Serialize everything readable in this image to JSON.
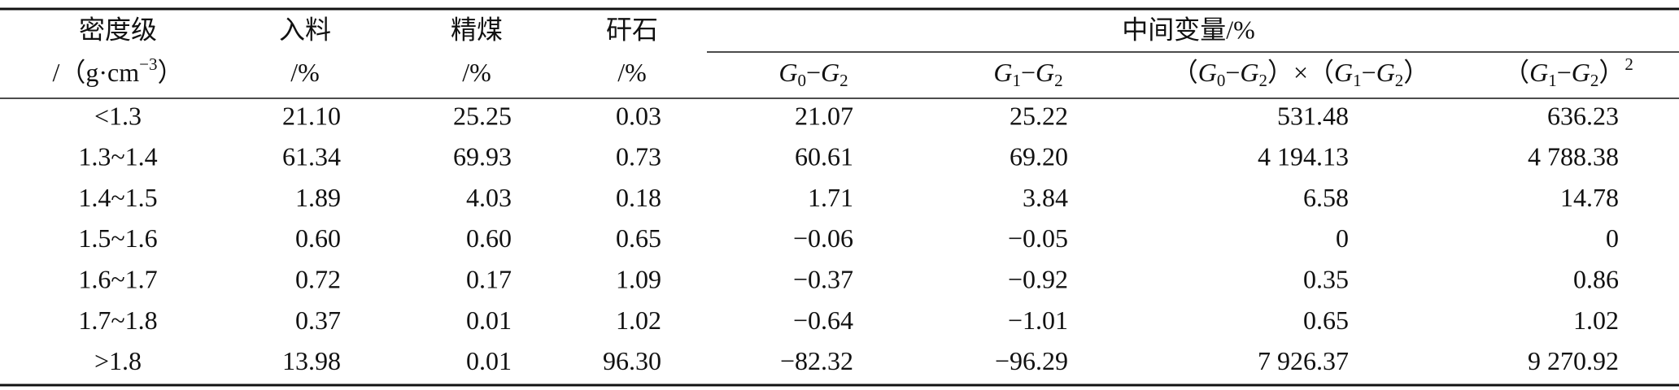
{
  "table": {
    "header_row1": [
      "密度级",
      "入料",
      "精煤",
      "矸石",
      "中间变量/%"
    ],
    "header_row2": [
      [
        {
          "text": "/（g·cm"
        },
        {
          "text": "−3",
          "style": "sup"
        },
        {
          "text": "）"
        }
      ],
      [
        {
          "text": "/%"
        }
      ],
      [
        {
          "text": "/%"
        }
      ],
      [
        {
          "text": "/%"
        }
      ],
      [
        {
          "text": "G",
          "style": "i"
        },
        {
          "text": "0",
          "style": "sub"
        },
        {
          "text": "−"
        },
        {
          "text": "G",
          "style": "i"
        },
        {
          "text": "2",
          "style": "sub"
        }
      ],
      [
        {
          "text": "G",
          "style": "i"
        },
        {
          "text": "1",
          "style": "sub"
        },
        {
          "text": "−"
        },
        {
          "text": "G",
          "style": "i"
        },
        {
          "text": "2",
          "style": "sub"
        }
      ],
      [
        {
          "text": "（"
        },
        {
          "text": "G",
          "style": "i"
        },
        {
          "text": "0",
          "style": "sub"
        },
        {
          "text": "−"
        },
        {
          "text": "G",
          "style": "i"
        },
        {
          "text": "2",
          "style": "sub"
        },
        {
          "text": "）×（"
        },
        {
          "text": "G",
          "style": "i"
        },
        {
          "text": "1",
          "style": "sub"
        },
        {
          "text": "−"
        },
        {
          "text": "G",
          "style": "i"
        },
        {
          "text": "2",
          "style": "sub"
        },
        {
          "text": "）"
        }
      ],
      [
        {
          "text": "（"
        },
        {
          "text": "G",
          "style": "i"
        },
        {
          "text": "1",
          "style": "sub"
        },
        {
          "text": "−"
        },
        {
          "text": "G",
          "style": "i"
        },
        {
          "text": "2",
          "style": "sub"
        },
        {
          "text": "）"
        },
        {
          "text": "2",
          "style": "sup"
        }
      ]
    ],
    "rows": [
      [
        "<1.3",
        "21.10",
        "25.25",
        "0.03",
        "21.07",
        "25.22",
        "531.48",
        "636.23"
      ],
      [
        "1.3~1.4",
        "61.34",
        "69.93",
        "0.73",
        "60.61",
        "69.20",
        "4 194.13",
        "4 788.38"
      ],
      [
        "1.4~1.5",
        "1.89",
        "4.03",
        "0.18",
        "1.71",
        "3.84",
        "6.58",
        "14.78"
      ],
      [
        "1.5~1.6",
        "0.60",
        "0.60",
        "0.65",
        "−0.06",
        "−0.05",
        "0",
        "0"
      ],
      [
        "1.6~1.7",
        "0.72",
        "0.17",
        "1.09",
        "−0.37",
        "−0.92",
        "0.35",
        "0.86"
      ],
      [
        "1.7~1.8",
        "0.37",
        "0.01",
        "1.02",
        "−0.64",
        "−1.01",
        "0.65",
        "1.02"
      ],
      [
        ">1.8",
        "13.98",
        "0.01",
        "96.30",
        "−82.32",
        "−96.29",
        "7 926.37",
        "9 270.92"
      ]
    ]
  }
}
